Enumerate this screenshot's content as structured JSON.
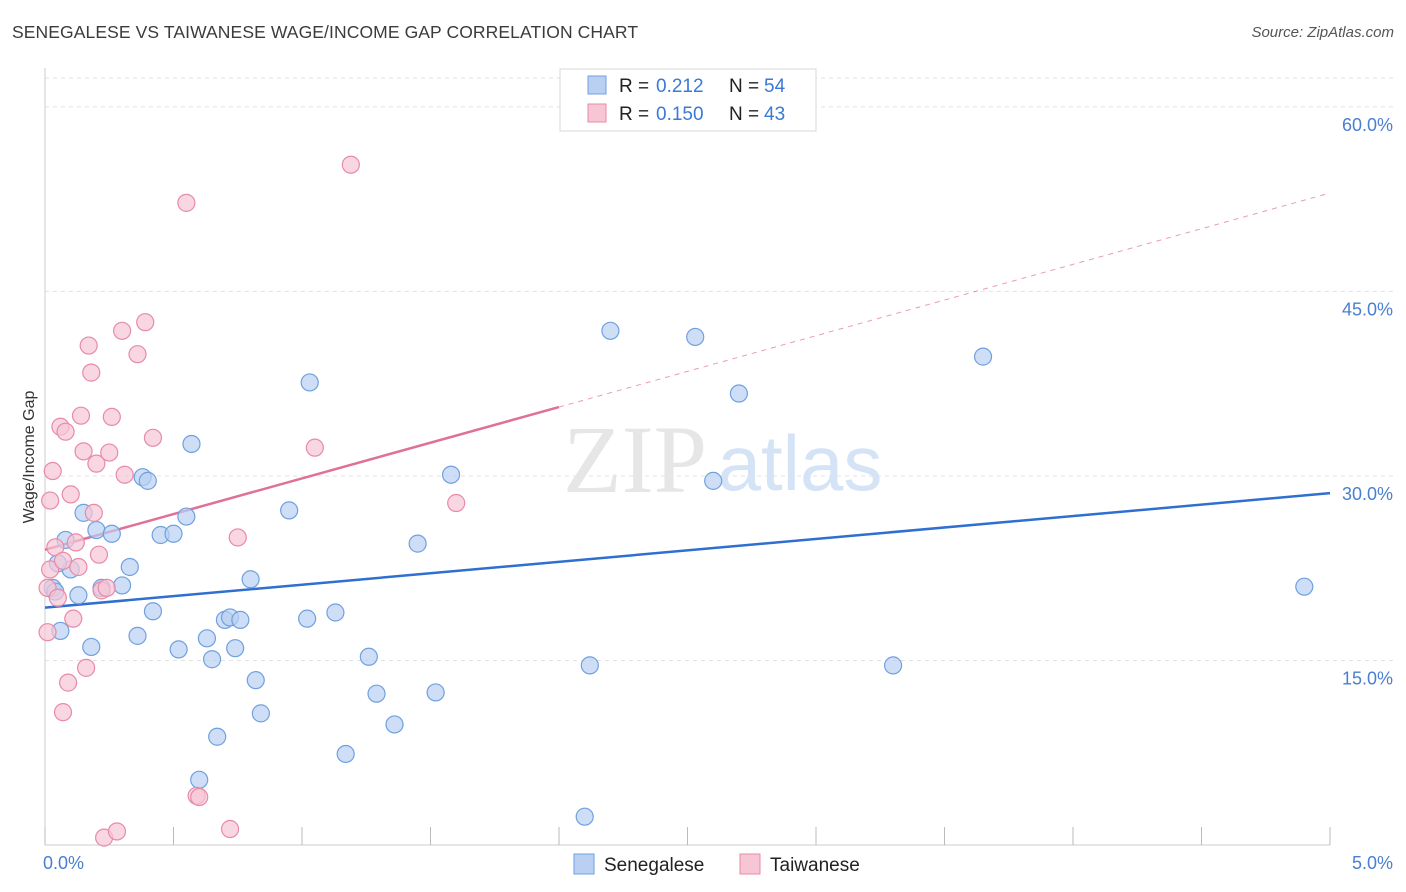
{
  "header": {
    "title": "SENEGALESE VS TAIWANESE WAGE/INCOME GAP CORRELATION CHART",
    "source": "Source: ZipAtlas.com"
  },
  "watermark": {
    "zip": "ZIP",
    "atlas": "atlas"
  },
  "legend": {
    "r_label": "R =",
    "n_label": "N =",
    "rows": [
      {
        "r": "0.212",
        "n": "54"
      },
      {
        "r": "0.150",
        "n": "43"
      }
    ]
  },
  "chart_data": {
    "type": "scatter",
    "title": "SENEGALESE VS TAIWANESE WAGE/INCOME GAP CORRELATION CHART",
    "xlabel": "",
    "ylabel": "Wage/Income Gap",
    "xlim": [
      0,
      5
    ],
    "ylim": [
      0,
      63
    ],
    "x_tick_labels": [
      "0.0%",
      "5.0%"
    ],
    "y_ticks": [
      15,
      30,
      45,
      60
    ],
    "y_tick_labels": [
      "15.0%",
      "30.0%",
      "45.0%",
      "60.0%"
    ],
    "grid": true,
    "legend_position": "top-center",
    "series": [
      {
        "name": "Senegalese",
        "color": "#6fa0e0",
        "fill": "#b9d0f2",
        "r": 0.212,
        "n": 54,
        "trend": {
          "x": [
            0,
            5
          ],
          "y": [
            19.3,
            28.6
          ],
          "color": "#2f6fd0"
        },
        "points": [
          [
            0.03,
            20.9
          ],
          [
            0.04,
            20.6
          ],
          [
            0.06,
            17.4
          ],
          [
            0.08,
            24.8
          ],
          [
            0.1,
            22.4
          ],
          [
            0.13,
            20.3
          ],
          [
            0.15,
            27.0
          ],
          [
            0.18,
            16.1
          ],
          [
            0.2,
            25.6
          ],
          [
            0.22,
            20.9
          ],
          [
            0.26,
            25.3
          ],
          [
            0.3,
            21.1
          ],
          [
            0.33,
            22.6
          ],
          [
            0.36,
            17.0
          ],
          [
            0.38,
            29.9
          ],
          [
            0.4,
            29.6
          ],
          [
            0.42,
            19.0
          ],
          [
            0.45,
            25.2
          ],
          [
            0.5,
            25.3
          ],
          [
            0.52,
            15.9
          ],
          [
            0.55,
            26.7
          ],
          [
            0.57,
            32.6
          ],
          [
            0.6,
            5.3
          ],
          [
            0.63,
            16.8
          ],
          [
            0.65,
            15.1
          ],
          [
            0.67,
            8.8
          ],
          [
            0.7,
            18.3
          ],
          [
            0.72,
            18.5
          ],
          [
            0.74,
            16.0
          ],
          [
            0.76,
            18.3
          ],
          [
            0.8,
            21.6
          ],
          [
            0.82,
            13.4
          ],
          [
            0.84,
            10.7
          ],
          [
            0.95,
            27.2
          ],
          [
            1.02,
            18.4
          ],
          [
            1.03,
            37.6
          ],
          [
            1.13,
            18.9
          ],
          [
            1.17,
            7.4
          ],
          [
            1.26,
            15.3
          ],
          [
            1.29,
            12.3
          ],
          [
            1.36,
            9.8
          ],
          [
            1.45,
            24.5
          ],
          [
            1.52,
            12.4
          ],
          [
            1.58,
            30.1
          ],
          [
            2.1,
            2.3
          ],
          [
            2.12,
            14.6
          ],
          [
            2.2,
            41.8
          ],
          [
            2.53,
            41.3
          ],
          [
            2.6,
            29.6
          ],
          [
            2.7,
            36.7
          ],
          [
            3.3,
            14.6
          ],
          [
            3.65,
            39.7
          ],
          [
            4.9,
            21.0
          ],
          [
            0.05,
            22.9
          ]
        ]
      },
      {
        "name": "Taiwanese",
        "color": "#e88aa8",
        "fill": "#f6c6d5",
        "r": 0.15,
        "n": 43,
        "trend": {
          "x": [
            0,
            2,
            5
          ],
          "y": [
            24.0,
            35.6,
            53.0
          ],
          "color": "#e07098",
          "solid_until": 2
        },
        "points": [
          [
            0.01,
            17.3
          ],
          [
            0.01,
            20.9
          ],
          [
            0.02,
            22.4
          ],
          [
            0.02,
            28.0
          ],
          [
            0.03,
            30.4
          ],
          [
            0.04,
            24.2
          ],
          [
            0.05,
            20.1
          ],
          [
            0.06,
            34.0
          ],
          [
            0.07,
            23.1
          ],
          [
            0.07,
            10.8
          ],
          [
            0.08,
            33.6
          ],
          [
            0.09,
            13.2
          ],
          [
            0.1,
            28.5
          ],
          [
            0.11,
            18.4
          ],
          [
            0.12,
            24.6
          ],
          [
            0.13,
            22.6
          ],
          [
            0.14,
            34.9
          ],
          [
            0.15,
            32.0
          ],
          [
            0.16,
            14.4
          ],
          [
            0.17,
            40.6
          ],
          [
            0.18,
            38.4
          ],
          [
            0.19,
            27.0
          ],
          [
            0.2,
            31.0
          ],
          [
            0.21,
            23.6
          ],
          [
            0.22,
            20.7
          ],
          [
            0.23,
            0.6
          ],
          [
            0.24,
            20.9
          ],
          [
            0.25,
            31.9
          ],
          [
            0.26,
            34.8
          ],
          [
            0.28,
            1.1
          ],
          [
            0.3,
            41.8
          ],
          [
            0.31,
            30.1
          ],
          [
            0.36,
            39.9
          ],
          [
            0.39,
            42.5
          ],
          [
            0.42,
            33.1
          ],
          [
            0.55,
            52.2
          ],
          [
            0.59,
            4.0
          ],
          [
            0.6,
            3.9
          ],
          [
            0.72,
            1.3
          ],
          [
            0.75,
            25.0
          ],
          [
            1.05,
            32.3
          ],
          [
            1.19,
            55.3
          ],
          [
            1.6,
            27.8
          ]
        ]
      }
    ]
  }
}
